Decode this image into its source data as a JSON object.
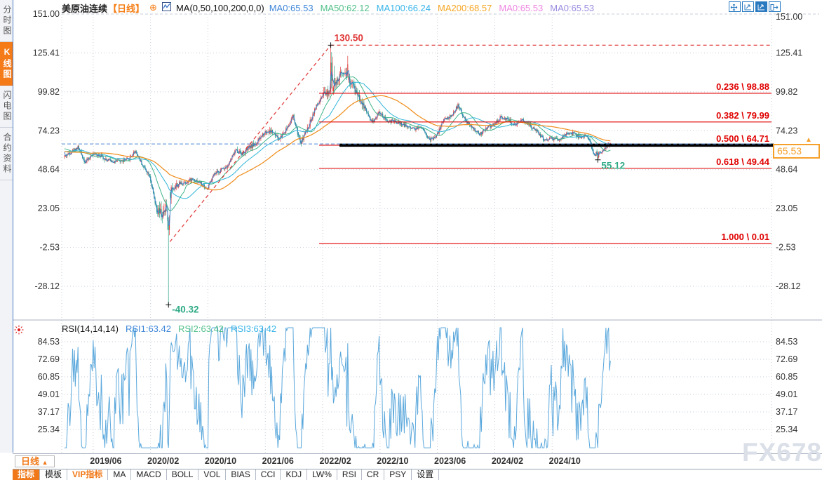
{
  "header": {
    "symbol": "美原油连续",
    "period": "【日线】",
    "plus_icon": "⊕",
    "ma_params": "MA(0,50,100,200,0,0)",
    "ma_values": [
      {
        "label": "MA0:65.53",
        "color": "#3e86d8"
      },
      {
        "label": "MA50:62.12",
        "color": "#52c08a"
      },
      {
        "label": "MA100:66.24",
        "color": "#38b4e8"
      },
      {
        "label": "MA200:68.57",
        "color": "#f5a623"
      },
      {
        "label": "MA0:65.53",
        "color": "#ee86e0"
      },
      {
        "label": "MA0:65.53",
        "color": "#9a8ce0"
      }
    ]
  },
  "sidebar": {
    "items": [
      {
        "label": "分时图",
        "active": false
      },
      {
        "label": "K线图",
        "active": true
      },
      {
        "label": "闪电图",
        "active": false
      },
      {
        "label": "合约资料",
        "active": false
      }
    ]
  },
  "toolbar_icons": [
    "move-icon",
    "scale-axis-icon",
    "scale-axis-active-icon",
    "exit-icon"
  ],
  "rsi_header": {
    "name": "RSI(14,14,14)",
    "values": [
      {
        "label": "RSI1:63.42",
        "color": "#3e86d8"
      },
      {
        "label": "RSI2:63.42",
        "color": "#52c08a"
      },
      {
        "label": "RSI3:63.42",
        "color": "#38b4e8"
      }
    ]
  },
  "price_axis": [
    {
      "label": "151.00",
      "value": 151.0
    },
    {
      "label": "125.41",
      "value": 125.41
    },
    {
      "label": "99.82",
      "value": 99.82
    },
    {
      "label": "74.23",
      "value": 74.23
    },
    {
      "label": "48.64",
      "value": 48.64
    },
    {
      "label": "23.05",
      "value": 23.05
    },
    {
      "label": "-2.53",
      "value": -2.53
    },
    {
      "label": "-28.12",
      "value": -28.12
    }
  ],
  "rsi_axis": [
    {
      "label": "84.53",
      "value": 84.53
    },
    {
      "label": "72.69",
      "value": 72.69
    },
    {
      "label": "60.85",
      "value": 60.85
    },
    {
      "label": "49.01",
      "value": 49.01
    },
    {
      "label": "37.17",
      "value": 37.17
    },
    {
      "label": "25.34",
      "value": 25.34
    }
  ],
  "x_axis": {
    "period_button": "日线",
    "ticks": [
      {
        "label": "2019/06",
        "month_index": 4
      },
      {
        "label": "2020/02",
        "month_index": 12
      },
      {
        "label": "2020/10",
        "month_index": 20
      },
      {
        "label": "2021/06",
        "month_index": 28
      },
      {
        "label": "2022/02",
        "month_index": 36
      },
      {
        "label": "2022/10",
        "month_index": 44
      },
      {
        "label": "2023/06",
        "month_index": 52
      },
      {
        "label": "2024/02",
        "month_index": 60
      },
      {
        "label": "2024/10",
        "month_index": 68
      }
    ]
  },
  "tabs": [
    {
      "label": "指标",
      "active": true,
      "vip": false
    },
    {
      "label": "模板",
      "active": false,
      "vip": false
    },
    {
      "label": "VIP指标",
      "active": false,
      "vip": true
    },
    {
      "label": "MA",
      "active": false,
      "vip": false
    },
    {
      "label": "MACD",
      "active": false,
      "vip": false
    },
    {
      "label": "BOLL",
      "active": false,
      "vip": false
    },
    {
      "label": "VOL",
      "active": false,
      "vip": false
    },
    {
      "label": "BIAS",
      "active": false,
      "vip": false
    },
    {
      "label": "CCI",
      "active": false,
      "vip": false
    },
    {
      "label": "KDJ",
      "active": false,
      "vip": false
    },
    {
      "label": "LW%",
      "active": false,
      "vip": false
    },
    {
      "label": "RSI",
      "active": false,
      "vip": false
    },
    {
      "label": "CR",
      "active": false,
      "vip": false
    },
    {
      "label": "PSY",
      "active": false,
      "vip": false
    },
    {
      "label": "设置",
      "active": false,
      "vip": false
    }
  ],
  "annotations": {
    "peak_label": "130.50",
    "negative_low_label": "-40.32",
    "recent_low_label": "55.12",
    "current_price": "65.53"
  },
  "watermark": "FX678",
  "colors": {
    "fib_red": "#e00000",
    "annotation_green": "#2eaa85",
    "annotation_red": "#e03636",
    "candle_up": "#e24040",
    "candle_down": "#2aa386",
    "ma_blue": "#3e7cc8",
    "ma_green": "#3eb489",
    "ma_cyan": "#2fb4d8",
    "ma_orange": "#ef8c1a",
    "rsi_line": "#5ba8dc",
    "current_line_blue": "#4a86d8",
    "price_tag_orange": "#f6a02c",
    "grid": "#c6ccd8",
    "black_level_line": "#000000"
  },
  "chart_data": {
    "type": "candlestick+rsi",
    "title": "美原油连续 日线 (WTI crude continuous, daily)",
    "x_tick_labels": [
      "2019/06",
      "2020/02",
      "2020/10",
      "2021/06",
      "2022/02",
      "2022/10",
      "2023/06",
      "2024/02",
      "2024/10"
    ],
    "price_axis_range": [
      -28.12,
      151.0
    ],
    "rsi_axis_range": [
      25.34,
      84.53
    ],
    "grid": true,
    "monthly_close_anchors": {
      "start_month": "2019/02",
      "values": [
        57.0,
        60.1,
        63.4,
        53.5,
        58.5,
        58.6,
        55.1,
        54.1,
        54.2,
        55.2,
        61.1,
        51.6,
        44.8,
        20.5,
        18.8,
        35.5,
        39.3,
        40.3,
        42.6,
        40.2,
        35.8,
        45.3,
        48.5,
        52.2,
        61.5,
        59.2,
        63.6,
        66.3,
        73.5,
        73.9,
        68.5,
        75.0,
        83.6,
        66.2,
        75.2,
        88.2,
        95.7,
        100.3,
        104.7,
        114.7,
        105.8,
        98.6,
        89.6,
        79.5,
        86.5,
        80.6,
        80.3,
        78.9,
        77.0,
        75.7,
        76.8,
        68.1,
        70.6,
        81.8,
        83.6,
        90.8,
        81.0,
        75.9,
        71.7,
        75.9,
        78.3,
        83.2,
        81.9,
        76.9,
        81.5,
        77.9,
        73.6,
        68.2,
        69.3,
        68.0,
        71.7,
        72.5,
        69.8,
        71.5,
        58.2,
        60.8,
        65.53
      ]
    },
    "key_points": {
      "all_time_high": {
        "near": "2022/03",
        "price": 130.5
      },
      "negative_low": {
        "near": "2020/04",
        "price": -40.32
      },
      "recent_low": {
        "near": "2025/04",
        "price": 55.12
      },
      "last_price": 65.53
    },
    "overlays": {
      "fibonacci_levels": [
        {
          "ratio": "0.236",
          "price": 98.88,
          "label": "0.236 \\ 98.88"
        },
        {
          "ratio": "0.382",
          "price": 79.99,
          "label": "0.382 \\ 79.99"
        },
        {
          "ratio": "0.500",
          "price": 64.71,
          "label": "0.500 \\ 64.71"
        },
        {
          "ratio": "0.618",
          "price": 49.44,
          "label": "0.618 \\ 49.44"
        },
        {
          "ratio": "1.000",
          "price": 0.01,
          "label": "1.000 \\ 0.01"
        }
      ],
      "trendline": {
        "from_price": 1.2,
        "to_price": 130.5,
        "style": "red-dashed"
      },
      "horizontal_dashed_at": 130.5,
      "thick_black_line_at": 64.71,
      "blue_dashed_current_price": 65.53
    },
    "indicators": {
      "moving_averages": [
        {
          "name": "MA0",
          "last": 65.53
        },
        {
          "name": "MA50",
          "last": 62.12
        },
        {
          "name": "MA100",
          "last": 66.24
        },
        {
          "name": "MA200",
          "last": 68.57
        }
      ],
      "rsi": {
        "params": "14,14,14",
        "last_values": [
          63.42,
          63.42,
          63.42
        ]
      }
    }
  }
}
